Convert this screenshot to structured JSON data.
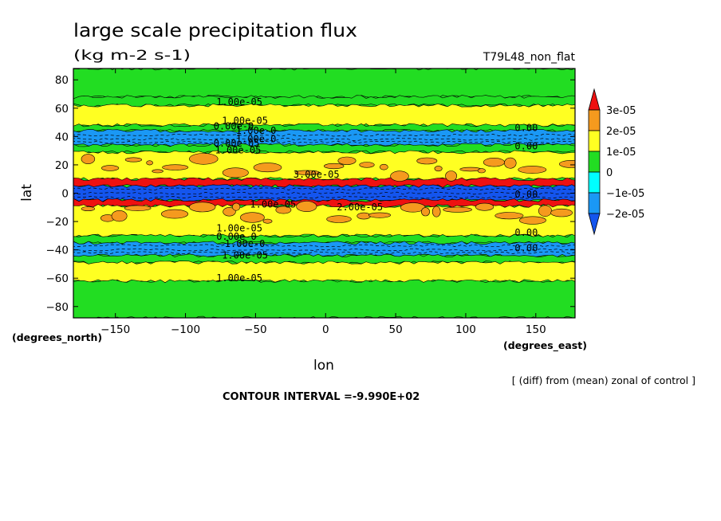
{
  "chart_data": {
    "type": "heatmap",
    "title": "large scale precipitation flux",
    "subtitle": "(kg m-2 s-1)",
    "experiment": "T79L48_non_flat",
    "xlabel": "lon",
    "ylabel": "lat",
    "x_units": "(degrees_east)",
    "y_units": "(degrees_north)",
    "x_ticks": [
      -150,
      -100,
      -50,
      0,
      50,
      100,
      150
    ],
    "y_ticks": [
      80,
      60,
      40,
      20,
      0,
      -20,
      -40,
      -60,
      -80
    ],
    "xlim": [
      -180,
      178
    ],
    "ylim": [
      -88,
      88
    ],
    "note": "[ (diff) from (mean) zonal of control ]",
    "contour_interval": "CONTOUR INTERVAL =-9.990E+02",
    "colorbar": {
      "labels": [
        "3e-05",
        "2e-05",
        "1e-05",
        "0",
        "-1e-05",
        "-2e-05"
      ],
      "colors": [
        "#ee1111",
        "#f59a1e",
        "#ffff22",
        "#22dd22",
        "#00ffff",
        "#1a98f5",
        "#1455ee"
      ]
    },
    "bands": [
      {
        "lat_top": 88,
        "lat_bottom": 68,
        "level": "0"
      },
      {
        "lat_top": 68,
        "lat_bottom": 62,
        "level": "0"
      },
      {
        "lat_top": 62,
        "lat_bottom": 48,
        "level": "1e-05"
      },
      {
        "lat_top": 48,
        "lat_bottom": 44,
        "level": "0"
      },
      {
        "lat_top": 44,
        "lat_bottom": 34,
        "level": "-1e-05"
      },
      {
        "lat_top": 34,
        "lat_bottom": 29,
        "level": "0"
      },
      {
        "lat_top": 29,
        "lat_bottom": 10,
        "level": "1e-05"
      },
      {
        "lat_top": 10,
        "lat_bottom": 5,
        "level": "3e-05"
      },
      {
        "lat_top": 5,
        "lat_bottom": -5,
        "level": "-2e-05"
      },
      {
        "lat_top": -5,
        "lat_bottom": -9,
        "level": "3e-05"
      },
      {
        "lat_top": -9,
        "lat_bottom": -30,
        "level": "1e-05"
      },
      {
        "lat_top": -30,
        "lat_bottom": -35,
        "level": "0"
      },
      {
        "lat_top": -35,
        "lat_bottom": -44,
        "level": "-1e-05"
      },
      {
        "lat_top": -44,
        "lat_bottom": -49,
        "level": "0"
      },
      {
        "lat_top": -49,
        "lat_bottom": -62,
        "level": "1e-05"
      },
      {
        "lat_top": -62,
        "lat_bottom": -88,
        "level": "0"
      }
    ],
    "patches": [
      {
        "lat_top": 25,
        "lat_bottom": 12,
        "level": "2e-05"
      },
      {
        "lat_top": -9,
        "lat_bottom": -22,
        "level": "2e-05"
      }
    ],
    "contour_labels": [
      {
        "text": "1.00e-05",
        "lon": -78,
        "lat": 62
      },
      {
        "text": "1.00e-05",
        "lon": -74,
        "lat": 49
      },
      {
        "text": "0.00e-0",
        "lon": -80,
        "lat": 45
      },
      {
        "text": "1.00e-0",
        "lon": -64,
        "lat": 42
      },
      {
        "text": "1.00e-0",
        "lon": -64,
        "lat": 36
      },
      {
        "text": "0.00e-05",
        "lon": -80,
        "lat": 33
      },
      {
        "text": "1.00e-05",
        "lon": -79,
        "lat": 28
      },
      {
        "text": "3.00e-05",
        "lon": -23,
        "lat": 11
      },
      {
        "text": "0.00",
        "lon": 135,
        "lat": 44
      },
      {
        "text": "0.00",
        "lon": 135,
        "lat": 31
      },
      {
        "text": "0.00",
        "lon": 135,
        "lat": -3
      },
      {
        "text": "2.00e-05",
        "lon": 8,
        "lat": -12
      },
      {
        "text": "1.00e-05",
        "lon": -54,
        "lat": -10
      },
      {
        "text": "1.00e-05",
        "lon": -78,
        "lat": -27
      },
      {
        "text": "0.00e-0",
        "lon": -78,
        "lat": -33
      },
      {
        "text": "1.00e-0",
        "lon": -72,
        "lat": -38
      },
      {
        "text": "1.00e-05",
        "lon": -74,
        "lat": -46
      },
      {
        "text": "1.00e-05",
        "lon": -78,
        "lat": -62
      },
      {
        "text": "0.00",
        "lon": 135,
        "lat": -30
      },
      {
        "text": "0.00",
        "lon": 135,
        "lat": -41
      }
    ]
  }
}
